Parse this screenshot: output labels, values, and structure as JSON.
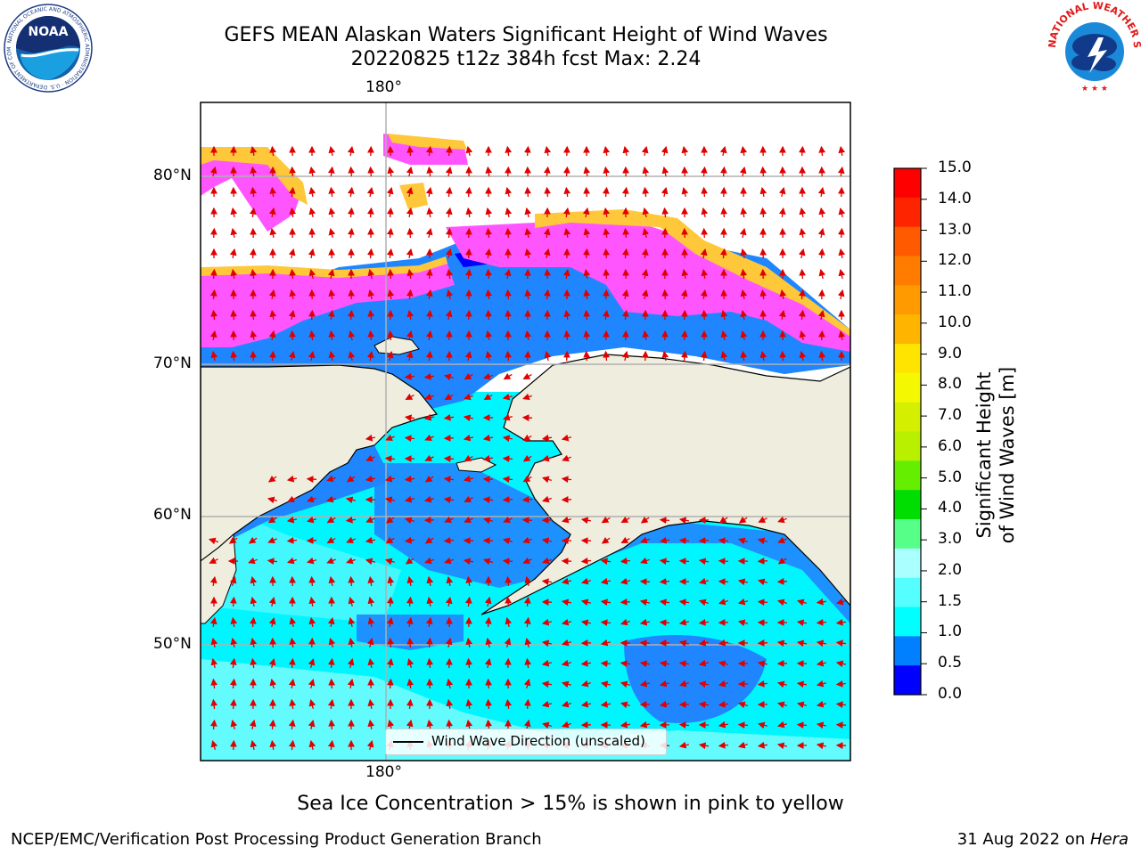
{
  "title_line1": "GEFS MEAN Alaskan Waters Significant Height of Wind Waves",
  "title_line2": "20220825 t12z 384h fcst   Max: 2.24",
  "logos": {
    "left": "noaa-logo",
    "right": "national-weather-service-logo",
    "left_text": "NATIONAL OCEANIC AND ATMOSPHERIC ADMINISTRATION · U.S. DEPARTMENT OF COMMERCE",
    "left_name": "NOAA",
    "right_text": "NATIONAL WEATHER SERVICE"
  },
  "map": {
    "lon_label_top": "180°",
    "lon_label_bottom": "180°",
    "lat_labels": [
      "80°N",
      "70°N",
      "60°N",
      "50°N"
    ],
    "legend": "Wind Wave Direction (unscaled)",
    "colors": {
      "land": "#efedde",
      "ice_pink": "#ff55ff",
      "ice_yellow": "#ffd23a",
      "arrow": "#e00000"
    }
  },
  "colorbar": {
    "label": "Significant Height of Wind Waves [m]",
    "ticks": [
      "15.0",
      "14.0",
      "13.0",
      "12.0",
      "11.0",
      "10.0",
      "9.0",
      "8.0",
      "7.0",
      "6.0",
      "5.0",
      "4.0",
      "3.0",
      "2.0",
      "1.5",
      "1.0",
      "0.5",
      "0.0"
    ],
    "colors_top_to_bottom": [
      "#ff0000",
      "#ff2400",
      "#ff5a00",
      "#ff7c00",
      "#ff9a00",
      "#ffb400",
      "#ffe400",
      "#f4f800",
      "#d4f000",
      "#b8f000",
      "#66ee00",
      "#00dd00",
      "#55ff88",
      "#aaffff",
      "#55ffff",
      "#00ffff",
      "#0080ff",
      "#0000ff"
    ]
  },
  "caption": "Sea Ice Concentration > 15% is shown in pink to yellow",
  "footer_left": "NCEP/EMC/Verification Post Processing Product Generation Branch",
  "footer_right_date": "31 Aug 2022 on ",
  "footer_right_machine": "Hera"
}
